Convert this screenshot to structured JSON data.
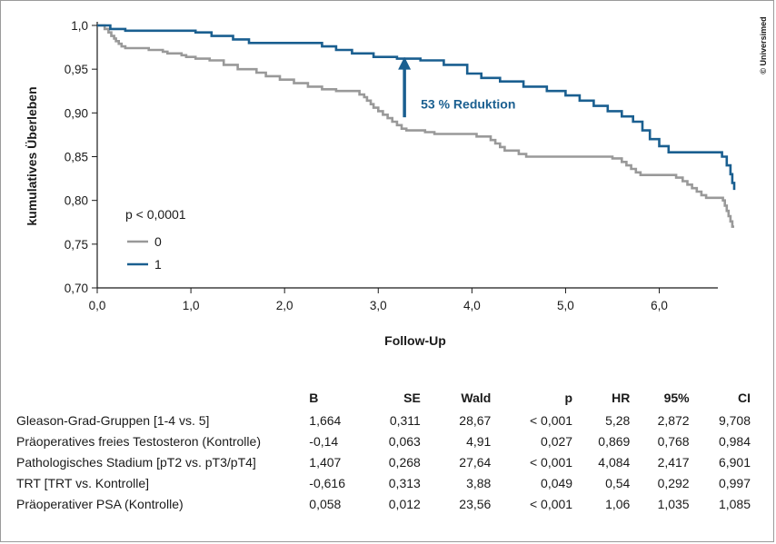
{
  "chart_data": {
    "type": "line",
    "step": true,
    "xlabel": "Follow-Up",
    "ylabel": "kumulatives Überleben",
    "xlim": [
      0,
      6.8
    ],
    "ylim": [
      0.7,
      1.0
    ],
    "x_ticks": [
      "0,0",
      "1,0",
      "2,0",
      "3,0",
      "4,0",
      "5,0",
      "6,0"
    ],
    "x_tick_values": [
      0,
      1,
      2,
      3,
      4,
      5,
      6
    ],
    "y_ticks": [
      "0,70",
      "0,75",
      "0,80",
      "0,85",
      "0,90",
      "0,95",
      "1,0"
    ],
    "y_tick_values": [
      0.7,
      0.75,
      0.8,
      0.85,
      0.9,
      0.95,
      1.0
    ],
    "grid": false,
    "legend_title": "p < 0,0001",
    "legend_position": "bottom-left",
    "series": [
      {
        "name": "0",
        "color": "#999999",
        "points": [
          [
            0.0,
            1.0
          ],
          [
            0.08,
            0.996
          ],
          [
            0.12,
            0.992
          ],
          [
            0.15,
            0.988
          ],
          [
            0.18,
            0.985
          ],
          [
            0.2,
            0.982
          ],
          [
            0.23,
            0.979
          ],
          [
            0.26,
            0.976
          ],
          [
            0.3,
            0.974
          ],
          [
            0.55,
            0.972
          ],
          [
            0.7,
            0.97
          ],
          [
            0.75,
            0.968
          ],
          [
            0.9,
            0.966
          ],
          [
            0.95,
            0.964
          ],
          [
            1.05,
            0.962
          ],
          [
            1.2,
            0.96
          ],
          [
            1.35,
            0.955
          ],
          [
            1.5,
            0.95
          ],
          [
            1.7,
            0.946
          ],
          [
            1.8,
            0.942
          ],
          [
            1.95,
            0.938
          ],
          [
            2.1,
            0.934
          ],
          [
            2.25,
            0.93
          ],
          [
            2.4,
            0.927
          ],
          [
            2.55,
            0.925
          ],
          [
            2.8,
            0.921
          ],
          [
            2.85,
            0.918
          ],
          [
            2.88,
            0.914
          ],
          [
            2.92,
            0.91
          ],
          [
            2.95,
            0.906
          ],
          [
            3.0,
            0.902
          ],
          [
            3.05,
            0.898
          ],
          [
            3.1,
            0.894
          ],
          [
            3.15,
            0.89
          ],
          [
            3.2,
            0.886
          ],
          [
            3.25,
            0.882
          ],
          [
            3.3,
            0.88
          ],
          [
            3.5,
            0.878
          ],
          [
            3.6,
            0.876
          ],
          [
            4.05,
            0.873
          ],
          [
            4.2,
            0.869
          ],
          [
            4.25,
            0.865
          ],
          [
            4.3,
            0.861
          ],
          [
            4.35,
            0.857
          ],
          [
            4.5,
            0.853
          ],
          [
            4.58,
            0.85
          ],
          [
            5.5,
            0.848
          ],
          [
            5.6,
            0.844
          ],
          [
            5.65,
            0.84
          ],
          [
            5.7,
            0.836
          ],
          [
            5.75,
            0.832
          ],
          [
            5.8,
            0.829
          ],
          [
            6.18,
            0.826
          ],
          [
            6.25,
            0.822
          ],
          [
            6.3,
            0.818
          ],
          [
            6.35,
            0.814
          ],
          [
            6.4,
            0.81
          ],
          [
            6.45,
            0.806
          ],
          [
            6.5,
            0.803
          ],
          [
            6.68,
            0.8
          ],
          [
            6.7,
            0.794
          ],
          [
            6.72,
            0.788
          ],
          [
            6.74,
            0.782
          ],
          [
            6.76,
            0.776
          ],
          [
            6.78,
            0.77
          ],
          [
            6.8,
            0.77
          ]
        ]
      },
      {
        "name": "1",
        "color": "#1a5f90",
        "points": [
          [
            0.0,
            1.0
          ],
          [
            0.14,
            0.996
          ],
          [
            0.3,
            0.994
          ],
          [
            1.05,
            0.992
          ],
          [
            1.22,
            0.988
          ],
          [
            1.45,
            0.984
          ],
          [
            1.62,
            0.98
          ],
          [
            2.4,
            0.976
          ],
          [
            2.55,
            0.972
          ],
          [
            2.72,
            0.968
          ],
          [
            2.95,
            0.964
          ],
          [
            3.2,
            0.962
          ],
          [
            3.45,
            0.96
          ],
          [
            3.7,
            0.955
          ],
          [
            3.95,
            0.945
          ],
          [
            4.1,
            0.94
          ],
          [
            4.3,
            0.936
          ],
          [
            4.55,
            0.93
          ],
          [
            4.8,
            0.925
          ],
          [
            5.0,
            0.92
          ],
          [
            5.15,
            0.914
          ],
          [
            5.3,
            0.908
          ],
          [
            5.45,
            0.902
          ],
          [
            5.6,
            0.896
          ],
          [
            5.72,
            0.89
          ],
          [
            5.82,
            0.88
          ],
          [
            5.9,
            0.87
          ],
          [
            6.0,
            0.862
          ],
          [
            6.1,
            0.855
          ],
          [
            6.67,
            0.85
          ],
          [
            6.72,
            0.84
          ],
          [
            6.76,
            0.83
          ],
          [
            6.78,
            0.82
          ],
          [
            6.8,
            0.812
          ]
        ]
      }
    ],
    "annotation": {
      "text": "53 % Reduktion",
      "color": "#1a5f90",
      "arrow_x": 3.28,
      "arrow_from_y": 0.895,
      "arrow_to_y": 0.962
    }
  },
  "copyright": "© Universimed",
  "table": {
    "headers": [
      "",
      "B",
      "SE",
      "Wald",
      "p",
      "HR",
      "95%",
      "CI"
    ],
    "rows": [
      [
        "Gleason-Grad-Gruppen [1-4 vs. 5]",
        "1,664",
        "0,311",
        "28,67",
        "< 0,001",
        "5,28",
        "2,872",
        "9,708"
      ],
      [
        "Präoperatives freies Testosteron (Kontrolle)",
        "-0,14",
        "0,063",
        "4,91",
        "0,027",
        "0,869",
        "0,768",
        "0,984"
      ],
      [
        "Pathologisches Stadium [pT2 vs. pT3/pT4]",
        "1,407",
        "0,268",
        "27,64",
        "< 0,001",
        "4,084",
        "2,417",
        "6,901"
      ],
      [
        "TRT [TRT vs. Kontrolle]",
        "-0,616",
        "0,313",
        "3,88",
        "0,049",
        "0,54",
        "0,292",
        "0,997"
      ],
      [
        "Präoperativer PSA (Kontrolle)",
        "0,058",
        "0,012",
        "23,56",
        "< 0,001",
        "1,06",
        "1,035",
        "1,085"
      ]
    ]
  }
}
